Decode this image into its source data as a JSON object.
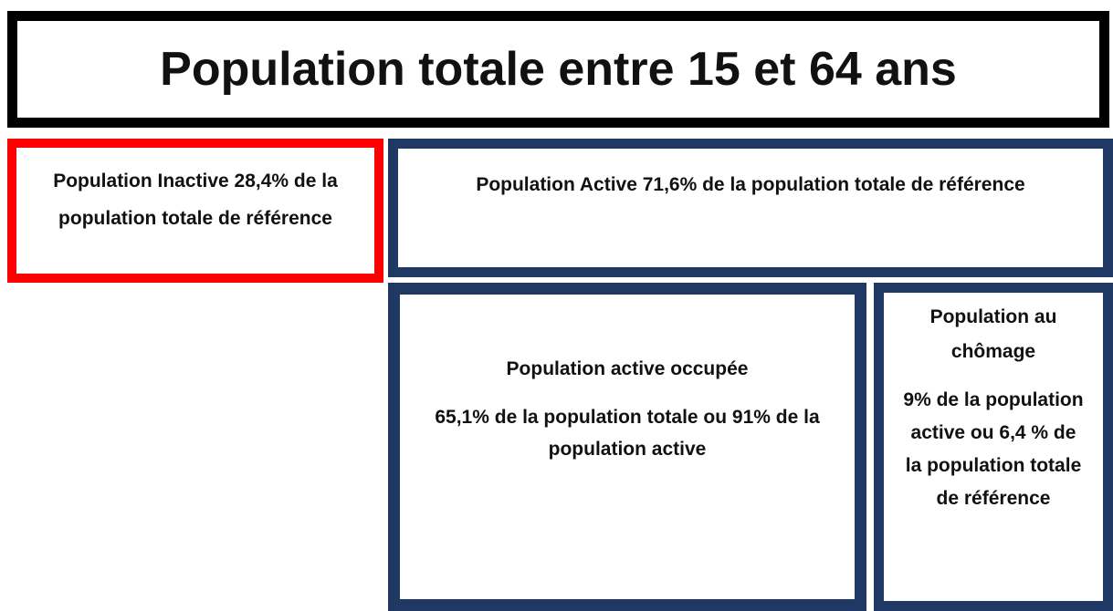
{
  "header": {
    "title": "Population totale entre 15 et 64 ans"
  },
  "inactive": {
    "text": "Population Inactive 28,4% de la population totale de référence"
  },
  "active": {
    "text": "Population Active 71,6% de la population totale de référence"
  },
  "occupied": {
    "heading": "Population active occupée",
    "text": "65,1% de la population totale ou 91% de la population active"
  },
  "unemployed": {
    "heading": "Population au chômage",
    "text": "9% de la population active ou 6,4 % de la population totale de référence"
  }
}
